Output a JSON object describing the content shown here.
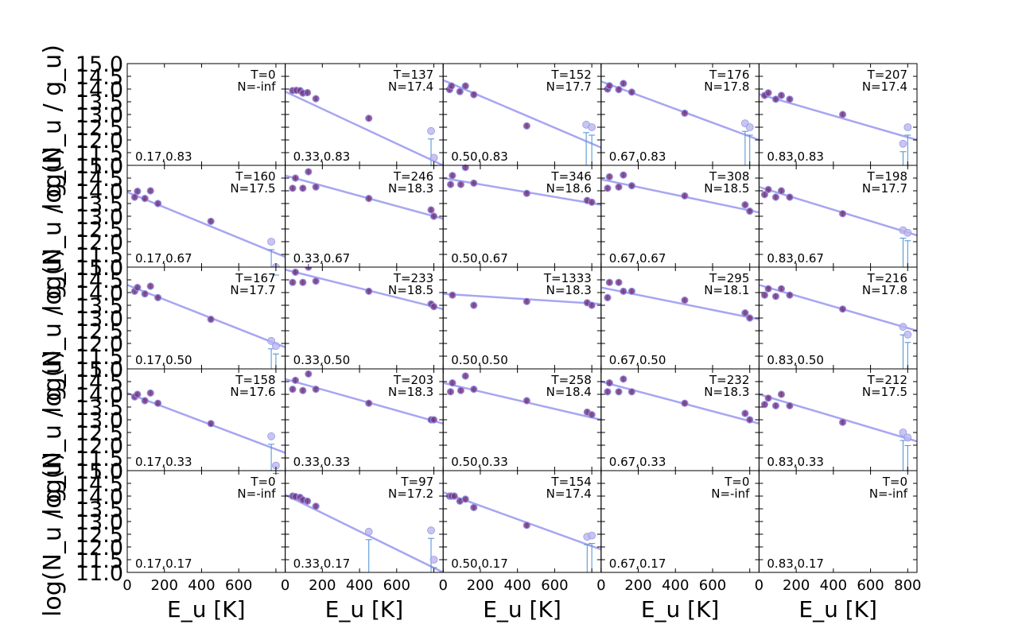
{
  "chart_data": {
    "type": "scatter",
    "grid": {
      "rows": 5,
      "cols": 5
    },
    "ylabel": "log(N_u / g_u)",
    "xlabel": "E_u [K]",
    "xlim": [
      0,
      850
    ],
    "ylim": [
      11.0,
      15.0
    ],
    "xticks": [
      "0",
      "200",
      "400",
      "600",
      "800"
    ],
    "yticks": [
      "11.0",
      "11.5",
      "12.0",
      "12.5",
      "13.0",
      "13.5",
      "14.0",
      "14.5",
      "15.0"
    ],
    "colors": {
      "fit_line": "#a7a6f2",
      "point_fill": "#7a3680",
      "upper_point": "#b9b7ee",
      "limit_line": "#4a8fcf"
    },
    "panels": [
      {
        "row": 0,
        "col": 0,
        "pos": "0.17,0.83",
        "T": "T=0",
        "N": "N=-inf",
        "points": [],
        "upper": [],
        "fit": null
      },
      {
        "row": 0,
        "col": 1,
        "pos": "0.33,0.83",
        "T": "T=137",
        "N": "N=17.4",
        "points": [
          [
            40,
            13.94
          ],
          [
            60,
            13.95
          ],
          [
            80,
            13.94
          ],
          [
            95,
            13.84
          ],
          [
            120,
            13.86
          ],
          [
            165,
            13.62
          ],
          [
            450,
            12.85
          ]
        ],
        "upper": [
          [
            785,
            12.35
          ],
          [
            800,
            11.3
          ]
        ],
        "fit": [
          [
            0,
            13.9
          ],
          [
            850,
            11.0
          ]
        ]
      },
      {
        "row": 0,
        "col": 2,
        "pos": "0.50,0.83",
        "T": "T=152",
        "N": "N=17.7",
        "points": [
          [
            35,
            13.98
          ],
          [
            45,
            14.12
          ],
          [
            90,
            13.9
          ],
          [
            120,
            14.12
          ],
          [
            165,
            13.78
          ],
          [
            450,
            12.55
          ]
        ],
        "upper": [
          [
            770,
            12.6
          ],
          [
            800,
            12.5
          ]
        ],
        "fit": [
          [
            0,
            14.35
          ],
          [
            850,
            11.7
          ]
        ]
      },
      {
        "row": 0,
        "col": 3,
        "pos": "0.67,0.83",
        "T": "T=176",
        "N": "N=17.8",
        "points": [
          [
            35,
            14.0
          ],
          [
            45,
            14.13
          ],
          [
            95,
            13.98
          ],
          [
            120,
            14.22
          ],
          [
            165,
            13.88
          ],
          [
            450,
            13.05
          ]
        ],
        "upper": [
          [
            775,
            12.65
          ],
          [
            800,
            12.5
          ]
        ],
        "fit": [
          [
            0,
            14.3
          ],
          [
            850,
            12.0
          ]
        ]
      },
      {
        "row": 0,
        "col": 4,
        "pos": "0.83,0.83",
        "T": "T=207",
        "N": "N=17.4",
        "points": [
          [
            30,
            13.75
          ],
          [
            50,
            13.85
          ],
          [
            90,
            13.6
          ],
          [
            120,
            13.75
          ],
          [
            165,
            13.6
          ],
          [
            450,
            13.0
          ]
        ],
        "upper": [
          [
            775,
            11.85
          ],
          [
            800,
            12.5
          ]
        ],
        "fit": [
          [
            0,
            13.8
          ],
          [
            850,
            12.0
          ]
        ]
      },
      {
        "row": 1,
        "col": 0,
        "pos": "0.17,0.67",
        "T": "T=160",
        "N": "N=17.5",
        "points": [
          [
            40,
            13.75
          ],
          [
            55,
            13.98
          ],
          [
            95,
            13.7
          ],
          [
            125,
            14.0
          ],
          [
            165,
            13.5
          ],
          [
            450,
            12.8
          ]
        ],
        "upper": [
          [
            775,
            12.0
          ],
          [
            800,
            11.0
          ]
        ],
        "fit": [
          [
            0,
            13.95
          ],
          [
            850,
            11.4
          ]
        ]
      },
      {
        "row": 1,
        "col": 1,
        "pos": "0.33,0.67",
        "T": "T=246",
        "N": "N=18.3",
        "points": [
          [
            40,
            14.1
          ],
          [
            55,
            14.5
          ],
          [
            95,
            14.1
          ],
          [
            125,
            14.75
          ],
          [
            165,
            14.15
          ],
          [
            450,
            13.7
          ]
        ],
        "upper": [],
        "points2": [
          [
            785,
            13.25
          ],
          [
            800,
            13.0
          ]
        ],
        "fit": [
          [
            0,
            14.6
          ],
          [
            850,
            12.9
          ]
        ]
      },
      {
        "row": 1,
        "col": 2,
        "pos": "0.50,0.67",
        "T": "T=346",
        "N": "N=18.6",
        "points": [
          [
            40,
            14.25
          ],
          [
            50,
            14.6
          ],
          [
            95,
            14.25
          ],
          [
            120,
            14.92
          ],
          [
            165,
            14.3
          ],
          [
            450,
            13.9
          ]
        ],
        "upper": [],
        "points2": [
          [
            775,
            13.62
          ],
          [
            800,
            13.55
          ]
        ],
        "fit": [
          [
            0,
            14.5
          ],
          [
            850,
            13.45
          ]
        ]
      },
      {
        "row": 1,
        "col": 3,
        "pos": "0.67,0.67",
        "T": "T=308",
        "N": "N=18.5",
        "points": [
          [
            35,
            14.1
          ],
          [
            45,
            14.55
          ],
          [
            95,
            14.15
          ],
          [
            120,
            14.62
          ],
          [
            165,
            14.2
          ],
          [
            450,
            13.8
          ]
        ],
        "upper": [],
        "points2": [
          [
            775,
            13.45
          ],
          [
            800,
            13.2
          ]
        ],
        "fit": [
          [
            0,
            14.45
          ],
          [
            850,
            13.15
          ]
        ]
      },
      {
        "row": 1,
        "col": 4,
        "pos": "0.83,0.67",
        "T": "T=198",
        "N": "N=17.7",
        "points": [
          [
            30,
            13.85
          ],
          [
            50,
            14.05
          ],
          [
            90,
            13.75
          ],
          [
            120,
            14.0
          ],
          [
            165,
            13.75
          ],
          [
            450,
            13.1
          ]
        ],
        "upper": [
          [
            775,
            12.45
          ],
          [
            800,
            12.35
          ]
        ],
        "fit": [
          [
            0,
            14.15
          ],
          [
            850,
            12.25
          ]
        ]
      },
      {
        "row": 2,
        "col": 0,
        "pos": "0.17,0.50",
        "T": "T=167",
        "N": "N=17.7",
        "points": [
          [
            40,
            14.05
          ],
          [
            55,
            14.2
          ],
          [
            95,
            13.95
          ],
          [
            125,
            14.25
          ],
          [
            165,
            13.8
          ],
          [
            450,
            12.95
          ]
        ],
        "upper": [
          [
            775,
            12.1
          ],
          [
            800,
            11.9
          ]
        ],
        "fit": [
          [
            0,
            14.3
          ],
          [
            850,
            11.85
          ]
        ]
      },
      {
        "row": 2,
        "col": 1,
        "pos": "0.33,0.50",
        "T": "T=233",
        "N": "N=18.5",
        "points": [
          [
            40,
            14.4
          ],
          [
            55,
            14.8
          ],
          [
            95,
            14.4
          ],
          [
            125,
            15.0
          ],
          [
            165,
            14.45
          ],
          [
            450,
            14.05
          ]
        ],
        "upper": [],
        "points2": [
          [
            785,
            13.55
          ],
          [
            800,
            13.45
          ]
        ],
        "fit": [
          [
            0,
            14.9
          ],
          [
            850,
            13.35
          ]
        ]
      },
      {
        "row": 2,
        "col": 2,
        "pos": "0.50,0.50",
        "T": "T=1333",
        "N": "N=18.3",
        "points": [
          [
            50,
            13.9
          ],
          [
            165,
            13.5
          ],
          [
            450,
            13.65
          ]
        ],
        "upper": [],
        "points2": [
          [
            775,
            13.6
          ],
          [
            800,
            13.5
          ]
        ],
        "fit": [
          [
            0,
            13.95
          ],
          [
            850,
            13.55
          ]
        ]
      },
      {
        "row": 2,
        "col": 3,
        "pos": "0.67,0.50",
        "T": "T=295",
        "N": "N=18.1",
        "points": [
          [
            35,
            13.8
          ],
          [
            45,
            14.4
          ],
          [
            95,
            14.4
          ],
          [
            120,
            14.05
          ],
          [
            165,
            14.05
          ],
          [
            450,
            13.7
          ]
        ],
        "upper": [],
        "points2": [
          [
            775,
            13.2
          ],
          [
            800,
            13.0
          ]
        ],
        "fit": [
          [
            0,
            14.2
          ],
          [
            850,
            12.95
          ]
        ]
      },
      {
        "row": 2,
        "col": 4,
        "pos": "0.83,0.50",
        "T": "T=216",
        "N": "N=17.8",
        "points": [
          [
            30,
            13.9
          ],
          [
            50,
            14.15
          ],
          [
            90,
            13.85
          ],
          [
            120,
            14.15
          ],
          [
            165,
            13.9
          ],
          [
            450,
            13.35
          ]
        ],
        "upper": [
          [
            775,
            12.65
          ],
          [
            800,
            12.35
          ]
        ],
        "fit": [
          [
            0,
            14.3
          ],
          [
            850,
            12.5
          ]
        ]
      },
      {
        "row": 3,
        "col": 0,
        "pos": "0.17,0.33",
        "T": "T=158",
        "N": "N=17.6",
        "points": [
          [
            40,
            13.9
          ],
          [
            55,
            14.0
          ],
          [
            95,
            13.75
          ],
          [
            125,
            14.05
          ],
          [
            165,
            13.65
          ],
          [
            450,
            12.85
          ]
        ],
        "upper": [
          [
            775,
            12.35
          ],
          [
            800,
            11.2
          ]
        ],
        "fit": [
          [
            0,
            14.05
          ],
          [
            850,
            11.7
          ]
        ]
      },
      {
        "row": 3,
        "col": 1,
        "pos": "0.33,0.33",
        "T": "T=203",
        "N": "N=18.3",
        "points": [
          [
            40,
            14.2
          ],
          [
            55,
            14.55
          ],
          [
            95,
            14.15
          ],
          [
            125,
            14.8
          ],
          [
            165,
            14.2
          ],
          [
            450,
            13.65
          ]
        ],
        "upper": [],
        "points2": [
          [
            785,
            13.0
          ],
          [
            800,
            13.0
          ]
        ],
        "fit": [
          [
            0,
            14.6
          ],
          [
            850,
            12.85
          ]
        ]
      },
      {
        "row": 3,
        "col": 2,
        "pos": "0.50,0.33",
        "T": "T=258",
        "N": "N=18.4",
        "points": [
          [
            40,
            14.1
          ],
          [
            50,
            14.45
          ],
          [
            95,
            14.15
          ],
          [
            120,
            14.72
          ],
          [
            165,
            14.2
          ],
          [
            450,
            13.75
          ]
        ],
        "upper": [],
        "points2": [
          [
            775,
            13.3
          ],
          [
            800,
            13.2
          ]
        ],
        "fit": [
          [
            0,
            14.45
          ],
          [
            850,
            13.0
          ]
        ]
      },
      {
        "row": 3,
        "col": 3,
        "pos": "0.67,0.33",
        "T": "T=232",
        "N": "N=18.3",
        "points": [
          [
            35,
            14.1
          ],
          [
            45,
            14.45
          ],
          [
            95,
            14.1
          ],
          [
            120,
            14.6
          ],
          [
            165,
            14.1
          ],
          [
            450,
            13.65
          ]
        ],
        "upper": [],
        "points2": [
          [
            775,
            13.25
          ],
          [
            800,
            13.0
          ]
        ],
        "fit": [
          [
            0,
            14.5
          ],
          [
            850,
            12.85
          ]
        ]
      },
      {
        "row": 3,
        "col": 4,
        "pos": "0.83,0.33",
        "T": "T=212",
        "N": "N=17.5",
        "points": [
          [
            30,
            13.6
          ],
          [
            50,
            13.85
          ],
          [
            90,
            13.55
          ],
          [
            120,
            14.0
          ],
          [
            165,
            13.55
          ],
          [
            450,
            12.9
          ]
        ],
        "upper": [
          [
            775,
            12.5
          ],
          [
            800,
            12.3
          ]
        ],
        "fit": [
          [
            0,
            14.0
          ],
          [
            850,
            12.15
          ]
        ]
      },
      {
        "row": 4,
        "col": 0,
        "pos": "0.17,0.17",
        "T": "T=0",
        "N": "N=-inf",
        "points": [],
        "upper": [],
        "fit": null
      },
      {
        "row": 4,
        "col": 1,
        "pos": "0.33,0.17",
        "T": "T=97",
        "N": "N=17.2",
        "points": [
          [
            40,
            14.0
          ],
          [
            55,
            13.98
          ],
          [
            80,
            13.95
          ],
          [
            95,
            13.85
          ],
          [
            120,
            13.8
          ],
          [
            165,
            13.6
          ]
        ],
        "upper": [
          [
            450,
            12.6
          ],
          [
            785,
            12.65
          ],
          [
            800,
            11.5
          ]
        ],
        "fit": [
          [
            0,
            14.05
          ],
          [
            850,
            11.0
          ]
        ]
      },
      {
        "row": 4,
        "col": 2,
        "pos": "0.50,0.17",
        "T": "T=154",
        "N": "N=17.4",
        "points": [
          [
            35,
            14.0
          ],
          [
            45,
            14.0
          ],
          [
            60,
            14.0
          ],
          [
            90,
            13.8
          ],
          [
            120,
            13.88
          ],
          [
            165,
            13.55
          ],
          [
            450,
            12.85
          ]
        ],
        "upper": [
          [
            775,
            12.4
          ],
          [
            800,
            12.45
          ]
        ],
        "fit": [
          [
            0,
            14.15
          ],
          [
            850,
            11.9
          ]
        ]
      },
      {
        "row": 4,
        "col": 3,
        "pos": "0.67,0.17",
        "T": "T=0",
        "N": "N=-inf",
        "points": [],
        "upper": [],
        "fit": null
      },
      {
        "row": 4,
        "col": 4,
        "pos": "0.83,0.17",
        "T": "T=0",
        "N": "N=-inf",
        "points": [],
        "upper": [],
        "fit": null
      }
    ]
  }
}
